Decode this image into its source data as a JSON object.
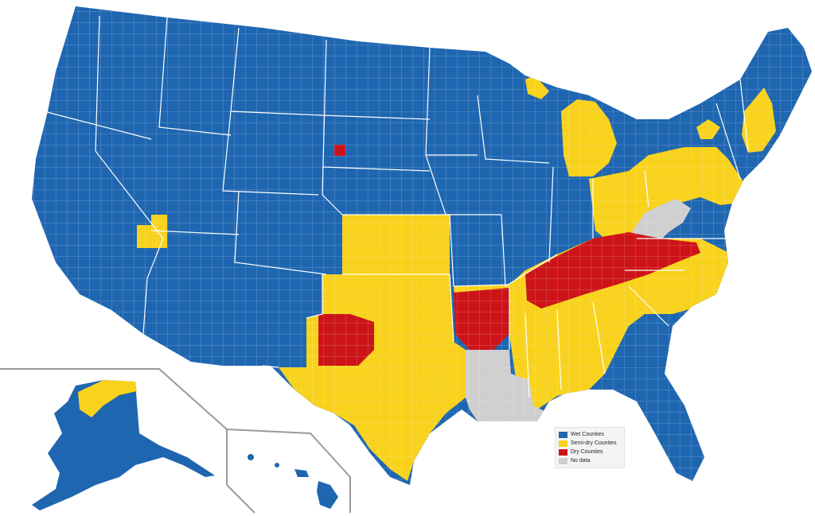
{
  "legend": {
    "items": [
      {
        "label": "Wet Counties",
        "color": "#1f66b1"
      },
      {
        "label": "Semi-dry Counties",
        "color": "#f8d21c"
      },
      {
        "label": "Dry Counties",
        "color": "#cc1418"
      },
      {
        "label": "No data",
        "color": "#cfcfcf"
      }
    ]
  },
  "colors": {
    "wet": "#1f66b1",
    "semi_dry": "#f8d21c",
    "dry": "#cc1418",
    "no_data": "#cfcfcf",
    "border": "#ffffff",
    "inset_line": "#9a9a9a"
  }
}
